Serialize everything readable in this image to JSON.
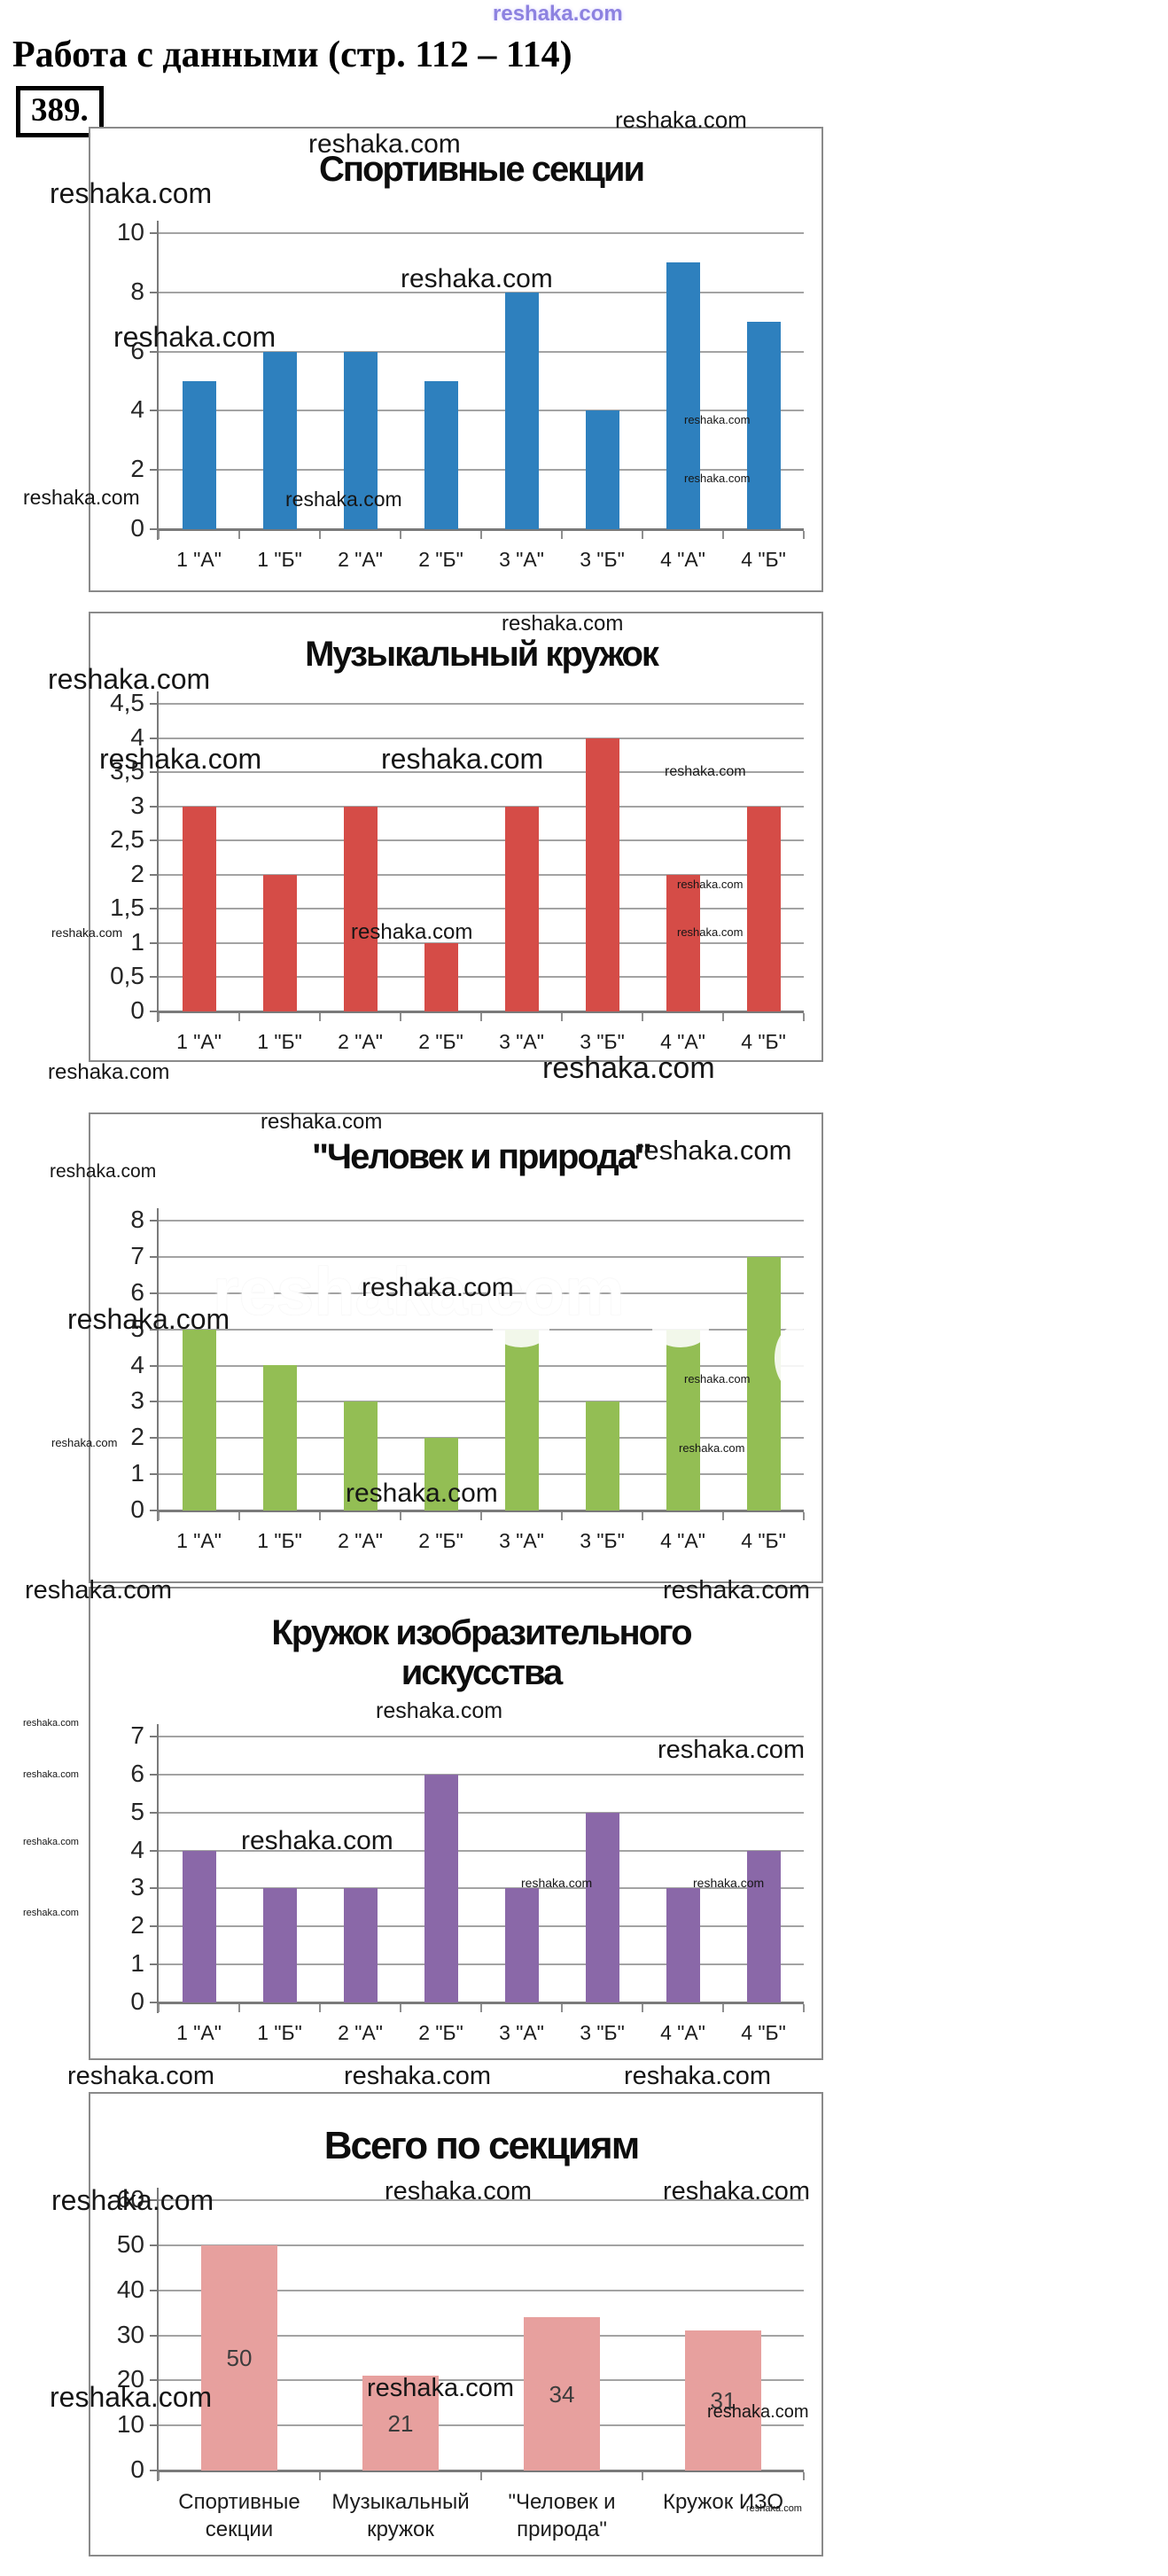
{
  "page": {
    "header_title": "Работа с данными (стр. 112 – 114)",
    "problem_number": "389.",
    "watermark_text": "reshaka.com"
  },
  "colors": {
    "sports_bar": "#2e80be",
    "music_bar": "#d54c47",
    "nature_bar": "#93be54",
    "art_bar": "#8a68a8",
    "total_bar": "#e7a09e",
    "gridline": "#a3a3a3",
    "axis": "#7a7a7a",
    "box_border": "#8a8a8a",
    "watermark_purple": "#8d82e0"
  },
  "chart_data": [
    {
      "type": "bar",
      "title": "Спортивные секции",
      "categories": [
        "1 \"А\"",
        "1 \"Б\"",
        "2 \"А\"",
        "2 \"Б\"",
        "3 \"А\"",
        "3 \"Б\"",
        "4 \"А\"",
        "4 \"Б\""
      ],
      "values": [
        5,
        6,
        6,
        5,
        8,
        4,
        9,
        7
      ],
      "ylim": [
        0,
        10
      ],
      "yticks": [
        "10",
        "8",
        "6",
        "4",
        "2",
        "0"
      ],
      "bar_color": "#2e80be",
      "grid": true,
      "legend": "none",
      "xlabel": "",
      "ylabel": ""
    },
    {
      "type": "bar",
      "title": "Музыкальный кружок",
      "categories": [
        "1 \"А\"",
        "1 \"Б\"",
        "2 \"А\"",
        "2 \"Б\"",
        "3 \"А\"",
        "3 \"Б\"",
        "4 \"А\"",
        "4 \"Б\""
      ],
      "values": [
        3,
        2,
        3,
        1,
        3,
        4,
        2,
        3
      ],
      "ylim": [
        0,
        4.5
      ],
      "yticks": [
        "4,5",
        "4",
        "3,5",
        "3",
        "2,5",
        "2",
        "1,5",
        "1",
        "0,5",
        "0"
      ],
      "bar_color": "#d54c47",
      "grid": true,
      "legend": "none",
      "xlabel": "",
      "ylabel": ""
    },
    {
      "type": "bar",
      "title": "\"Человек и природа\"",
      "categories": [
        "1 \"А\"",
        "1 \"Б\"",
        "2 \"А\"",
        "2 \"Б\"",
        "3 \"А\"",
        "3 \"Б\"",
        "4 \"А\"",
        "4 \"Б\""
      ],
      "values": [
        5,
        4,
        3,
        2,
        5,
        3,
        5,
        7
      ],
      "ylim": [
        0,
        8
      ],
      "yticks": [
        "8",
        "7",
        "6",
        "5",
        "4",
        "3",
        "2",
        "1",
        "0"
      ],
      "bar_color": "#93be54",
      "grid": true,
      "legend": "none",
      "xlabel": "",
      "ylabel": ""
    },
    {
      "type": "bar",
      "title": "Кружок изобразительного искусства",
      "title_lines": [
        "Кружок изобразительного",
        "искусства"
      ],
      "categories": [
        "1 \"А\"",
        "1 \"Б\"",
        "2 \"А\"",
        "2 \"Б\"",
        "3 \"А\"",
        "3 \"Б\"",
        "4 \"А\"",
        "4 \"Б\""
      ],
      "values": [
        4,
        3,
        3,
        6,
        3,
        5,
        3,
        4
      ],
      "ylim": [
        0,
        7
      ],
      "yticks": [
        "7",
        "6",
        "5",
        "4",
        "3",
        "2",
        "1",
        "0"
      ],
      "bar_color": "#8a68a8",
      "grid": true,
      "legend": "none",
      "xlabel": "",
      "ylabel": ""
    },
    {
      "type": "bar",
      "title": "Всего по секциям",
      "categories": [
        [
          "Спортивные",
          "секции"
        ],
        [
          "Музыкальный",
          "кружок"
        ],
        [
          "\"Человек и",
          "природа\""
        ],
        [
          "Кружок ИЗО"
        ]
      ],
      "values": [
        50,
        21,
        34,
        31
      ],
      "value_labels": [
        "50",
        "21",
        "34",
        "31"
      ],
      "ylim": [
        0,
        60
      ],
      "yticks": [
        "60",
        "50",
        "40",
        "30",
        "20",
        "10",
        "0"
      ],
      "bar_color": "#e7a09e",
      "grid": true,
      "legend": "none",
      "xlabel": "",
      "ylabel": ""
    }
  ]
}
